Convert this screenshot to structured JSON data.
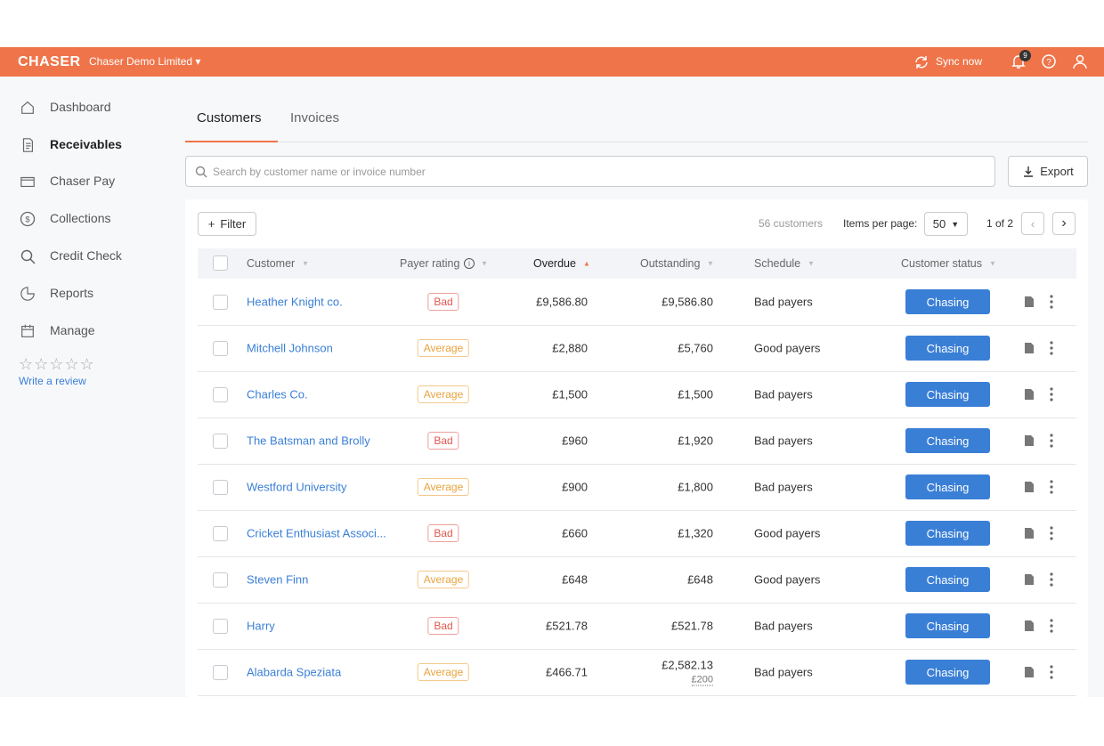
{
  "header": {
    "logo": "CHASER",
    "company": "Chaser Demo Limited",
    "sync": "Sync now",
    "notifications": "9"
  },
  "sidebar": {
    "items": [
      "Dashboard",
      "Receivables",
      "Chaser Pay",
      "Collections",
      "Credit Check",
      "Reports",
      "Manage"
    ],
    "review": "Write a review"
  },
  "tabs": [
    "Customers",
    "Invoices"
  ],
  "search_placeholder": "Search by customer name or invoice number",
  "export": "Export",
  "toolbar": {
    "filter": "Filter",
    "count": "56 customers",
    "per_page_label": "Items per page:",
    "per_page": "50",
    "page": "1 of 2"
  },
  "table": {
    "columns": [
      "Customer",
      "Payer rating",
      "Overdue",
      "Outstanding",
      "Schedule",
      "Customer status"
    ],
    "rows": [
      {
        "customer": "Heather Knight co.",
        "rating": "Bad",
        "overdue": "£9,586.80",
        "outstanding": "£9,586.80",
        "schedule": "Bad payers",
        "status": "Chasing"
      },
      {
        "customer": "Mitchell Johnson",
        "rating": "Average",
        "overdue": "£2,880",
        "outstanding": "£5,760",
        "schedule": "Good payers",
        "status": "Chasing"
      },
      {
        "customer": "Charles Co.",
        "rating": "Average",
        "overdue": "£1,500",
        "outstanding": "£1,500",
        "schedule": "Bad payers",
        "status": "Chasing"
      },
      {
        "customer": "The Batsman and Brolly",
        "rating": "Bad",
        "overdue": "£960",
        "outstanding": "£1,920",
        "schedule": "Bad payers",
        "status": "Chasing"
      },
      {
        "customer": "Westford University",
        "rating": "Average",
        "overdue": "£900",
        "outstanding": "£1,800",
        "schedule": "Bad payers",
        "status": "Chasing"
      },
      {
        "customer": "Cricket Enthusiast Associ...",
        "rating": "Bad",
        "overdue": "£660",
        "outstanding": "£1,320",
        "schedule": "Good payers",
        "status": "Chasing"
      },
      {
        "customer": "Steven Finn",
        "rating": "Average",
        "overdue": "£648",
        "outstanding": "£648",
        "schedule": "Good payers",
        "status": "Chasing"
      },
      {
        "customer": "Harry",
        "rating": "Bad",
        "overdue": "£521.78",
        "outstanding": "£521.78",
        "schedule": "Bad payers",
        "status": "Chasing"
      },
      {
        "customer": "Alabarda Speziata",
        "rating": "Average",
        "overdue": "£466.71",
        "outstanding": "£2,582.13",
        "outstanding_note": "£200",
        "schedule": "Bad payers",
        "status": "Chasing"
      }
    ]
  }
}
